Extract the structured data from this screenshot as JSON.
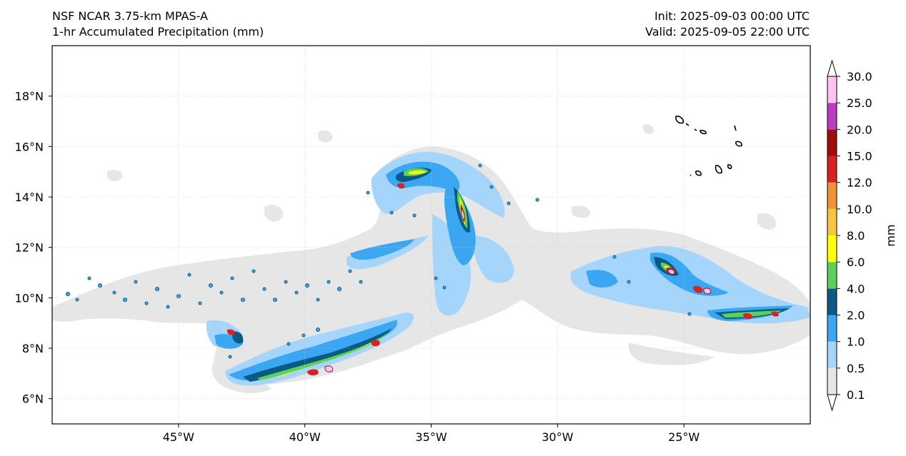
{
  "header": {
    "model": "NSF NCAR 3.75-km MPAS-A",
    "field": "1-hr Accumulated Precipitation (mm)",
    "init": "Init: 2025-09-03 00:00 UTC",
    "valid": "Valid: 2025-09-05 22:00 UTC"
  },
  "map": {
    "lon_range": [
      -50,
      -20
    ],
    "lat_range": [
      5,
      20
    ],
    "x_ticks": [
      {
        "lon": -45,
        "label": "45°W"
      },
      {
        "lon": -40,
        "label": "40°W"
      },
      {
        "lon": -35,
        "label": "35°W"
      },
      {
        "lon": -30,
        "label": "30°W"
      },
      {
        "lon": -25,
        "label": "25°W"
      }
    ],
    "y_ticks": [
      {
        "lat": 6,
        "label": "6°N"
      },
      {
        "lat": 8,
        "label": "8°N"
      },
      {
        "lat": 10,
        "label": "10°N"
      },
      {
        "lat": 12,
        "label": "12°N"
      },
      {
        "lat": 14,
        "label": "14°N"
      },
      {
        "lat": 16,
        "label": "16°N"
      },
      {
        "lat": 18,
        "label": "18°N"
      }
    ],
    "gridlines": true
  },
  "colorbar": {
    "unit": "mm",
    "levels": [
      "0.1",
      "0.5",
      "1.0",
      "2.0",
      "4.0",
      "6.0",
      "8.0",
      "10.0",
      "12.0",
      "15.0",
      "20.0",
      "25.0",
      "30.0"
    ],
    "colors": [
      "#e6e6e6",
      "#a6d5fb",
      "#3ba7f2",
      "#0b5a86",
      "#5bd05a",
      "#ffff00",
      "#f7c540",
      "#f09433",
      "#d92121",
      "#a00c0c",
      "#ba3bc4",
      "#ffc2f4"
    ],
    "extend": "both"
  },
  "precip_features": [
    {
      "name": "hurricane-spiral",
      "lon": -34.5,
      "lat": 13.5
    },
    {
      "name": "southern-band",
      "lon": -39.5,
      "lat": 7.8
    },
    {
      "name": "eastern-band",
      "lon": -24.5,
      "lat": 9.8
    },
    {
      "name": "western-convection",
      "lon": -43.0,
      "lat": 10.0
    }
  ]
}
